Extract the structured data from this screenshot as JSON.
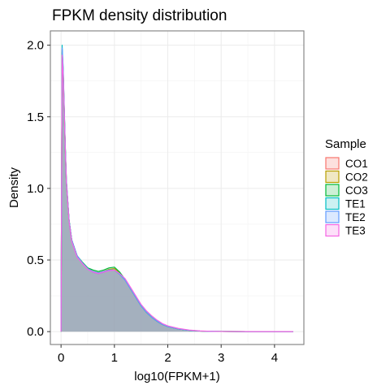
{
  "chart_data": {
    "type": "area",
    "title": "FPKM density distribution",
    "xlabel": "log10(FPKM+1)",
    "ylabel": "Density",
    "xlim": [
      -0.2,
      4.55
    ],
    "ylim": [
      -0.09,
      2.1
    ],
    "x_ticks": [
      0,
      1,
      2,
      3,
      4
    ],
    "y_ticks": [
      0.0,
      0.5,
      1.0,
      1.5,
      2.0
    ],
    "x_tick_labels": [
      "0",
      "1",
      "2",
      "3",
      "4"
    ],
    "y_tick_labels": [
      "0.0",
      "0.5",
      "1.0",
      "1.5",
      "2.0"
    ],
    "grid": true,
    "legend_position": "right",
    "legend_title": "Sample",
    "fill_color": "#a4afbf",
    "x": [
      0,
      0.02,
      0.04,
      0.06,
      0.08,
      0.1,
      0.15,
      0.2,
      0.3,
      0.4,
      0.5,
      0.6,
      0.7,
      0.8,
      0.9,
      1.0,
      1.1,
      1.2,
      1.3,
      1.4,
      1.5,
      1.6,
      1.7,
      1.8,
      1.9,
      2.0,
      2.2,
      2.4,
      2.6,
      2.8,
      3.0,
      3.5,
      4.0,
      4.35
    ],
    "series": [
      {
        "name": "CO1",
        "color": "#f8766d",
        "fill": "#fde0de",
        "values": [
          0.0,
          1.97,
          1.82,
          1.55,
          1.28,
          1.05,
          0.78,
          0.64,
          0.53,
          0.48,
          0.44,
          0.42,
          0.41,
          0.42,
          0.43,
          0.43,
          0.4,
          0.36,
          0.3,
          0.24,
          0.18,
          0.135,
          0.1,
          0.072,
          0.05,
          0.035,
          0.018,
          0.009,
          0.004,
          0.002,
          0.001,
          0.0,
          0.0,
          0.0
        ]
      },
      {
        "name": "CO2",
        "color": "#b79f00",
        "fill": "#f0e8c4",
        "values": [
          0.0,
          1.96,
          1.81,
          1.54,
          1.28,
          1.05,
          0.78,
          0.64,
          0.53,
          0.48,
          0.44,
          0.42,
          0.41,
          0.42,
          0.435,
          0.44,
          0.41,
          0.365,
          0.3,
          0.24,
          0.18,
          0.135,
          0.1,
          0.072,
          0.05,
          0.035,
          0.018,
          0.009,
          0.004,
          0.002,
          0.001,
          0.0,
          0.0,
          0.0
        ]
      },
      {
        "name": "CO3",
        "color": "#00ba38",
        "fill": "#cdf0d6",
        "values": [
          0.0,
          1.95,
          1.8,
          1.53,
          1.27,
          1.04,
          0.78,
          0.64,
          0.53,
          0.485,
          0.445,
          0.43,
          0.42,
          0.43,
          0.445,
          0.45,
          0.415,
          0.365,
          0.3,
          0.24,
          0.18,
          0.135,
          0.1,
          0.072,
          0.05,
          0.035,
          0.018,
          0.009,
          0.004,
          0.002,
          0.001,
          0.0,
          0.0,
          0.0
        ]
      },
      {
        "name": "TE1",
        "color": "#00bfc4",
        "fill": "#ccf1f2",
        "values": [
          0.0,
          2.0,
          1.84,
          1.56,
          1.29,
          1.06,
          0.78,
          0.64,
          0.53,
          0.48,
          0.44,
          0.415,
          0.405,
          0.415,
          0.43,
          0.43,
          0.4,
          0.36,
          0.3,
          0.24,
          0.18,
          0.135,
          0.1,
          0.072,
          0.05,
          0.035,
          0.018,
          0.009,
          0.004,
          0.002,
          0.001,
          0.0,
          0.0,
          0.0
        ]
      },
      {
        "name": "TE2",
        "color": "#619cff",
        "fill": "#dce9ff",
        "values": [
          0.0,
          1.98,
          1.83,
          1.55,
          1.28,
          1.05,
          0.78,
          0.64,
          0.53,
          0.48,
          0.44,
          0.42,
          0.41,
          0.42,
          0.43,
          0.43,
          0.4,
          0.36,
          0.3,
          0.24,
          0.18,
          0.135,
          0.1,
          0.072,
          0.05,
          0.035,
          0.018,
          0.009,
          0.004,
          0.002,
          0.001,
          0.0,
          0.0,
          0.0
        ]
      },
      {
        "name": "TE3",
        "color": "#f564e3",
        "fill": "#fde0f9",
        "values": [
          0.0,
          1.93,
          1.79,
          1.53,
          1.27,
          1.04,
          0.77,
          0.63,
          0.52,
          0.475,
          0.435,
          0.415,
          0.405,
          0.415,
          0.425,
          0.43,
          0.405,
          0.37,
          0.31,
          0.25,
          0.19,
          0.145,
          0.11,
          0.08,
          0.056,
          0.04,
          0.022,
          0.011,
          0.005,
          0.002,
          0.001,
          0.0,
          0.0,
          0.0
        ]
      }
    ]
  }
}
